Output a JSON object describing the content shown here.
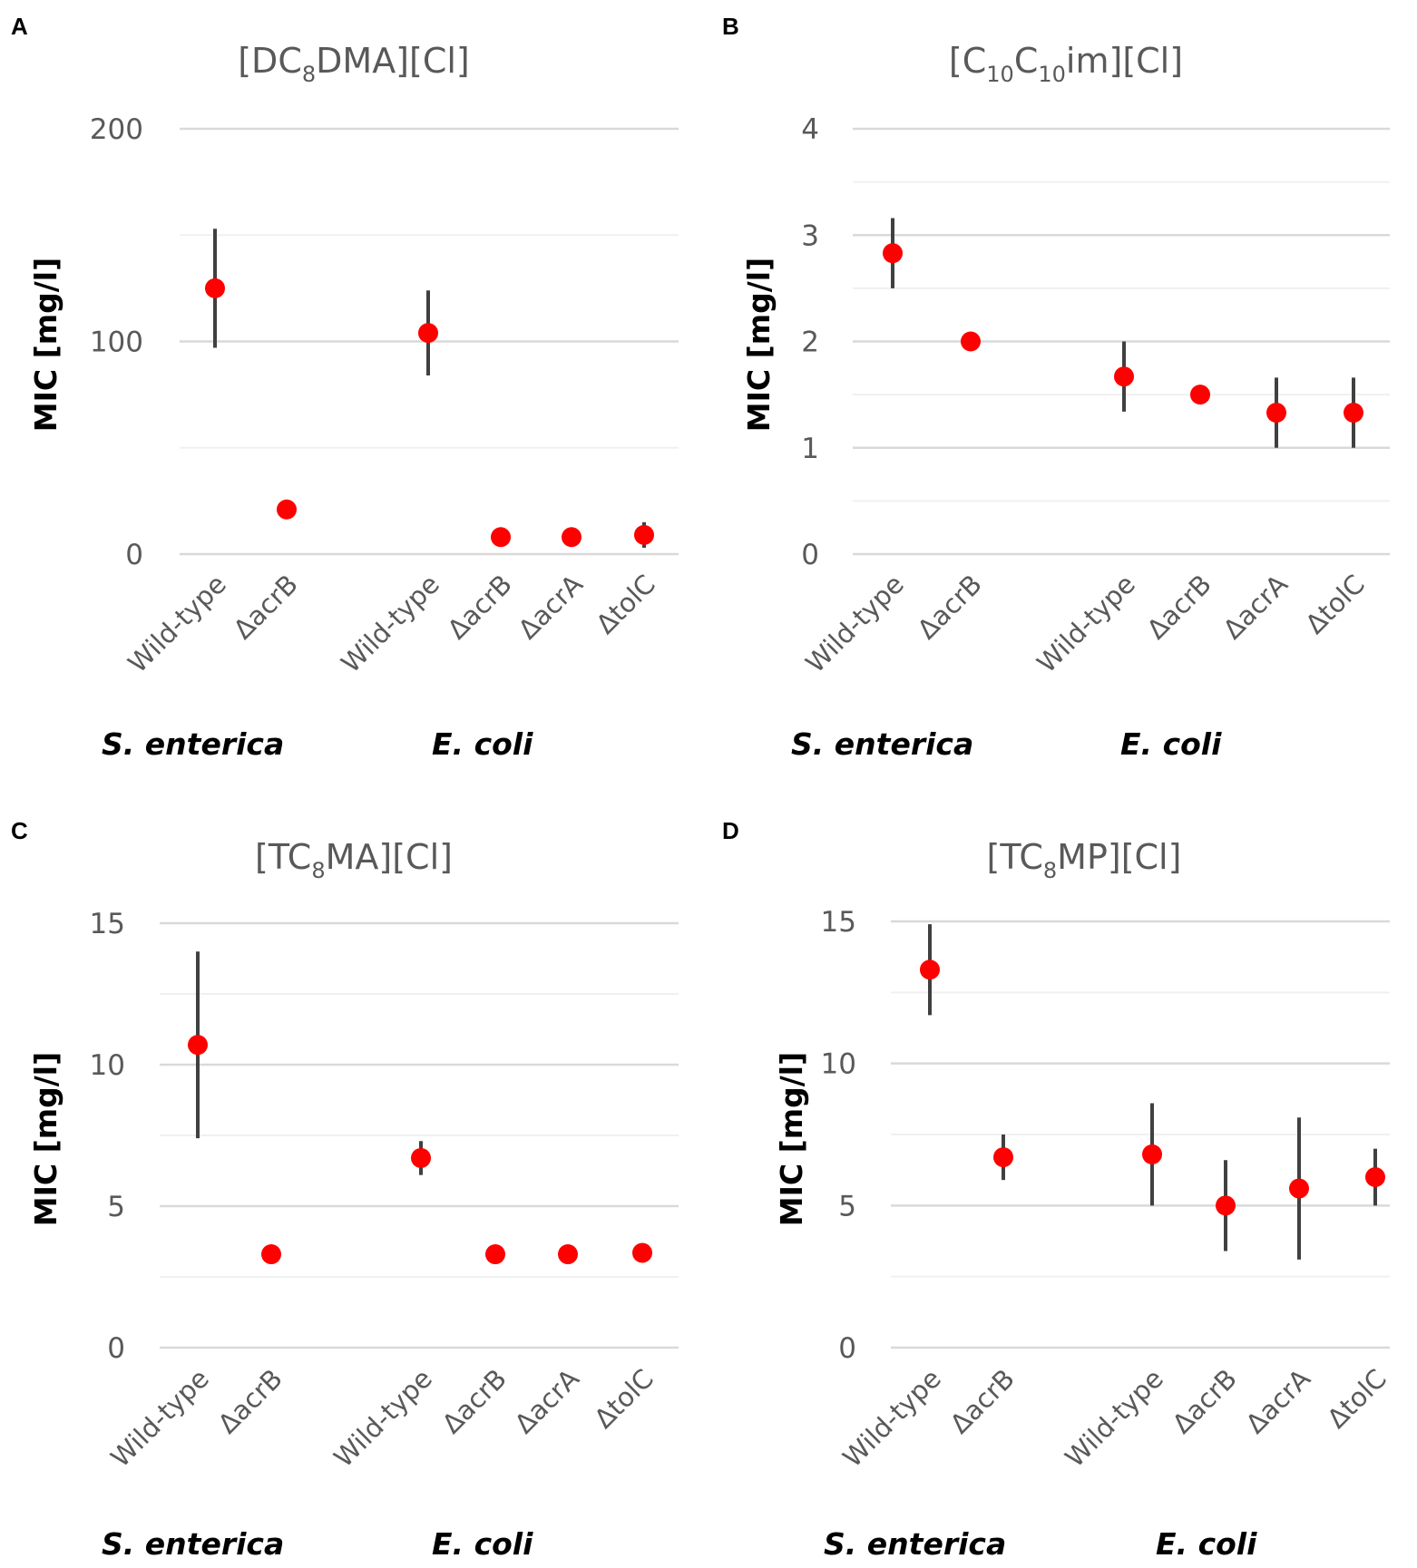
{
  "chart_data": [
    {
      "panel": "A",
      "type": "scatter",
      "title": "[DC8DMA][Cl]",
      "title_parts": {
        "pre": "[DC",
        "sub1": "8",
        "mid": "DMA][Cl]",
        "sub2": "",
        "post": ""
      },
      "ylabel": "MIC [mg/l]",
      "ylim": [
        0,
        200
      ],
      "yticks": [
        0,
        100,
        200
      ],
      "minor_gridlines": [
        50,
        150
      ],
      "groups": [
        {
          "name": "S. enterica",
          "categories": [
            "Wild-type",
            "ΔacrB"
          ],
          "values": [
            125,
            21
          ],
          "errors": [
            28,
            3
          ]
        },
        {
          "name": "E. coli",
          "categories": [
            "Wild-type",
            "ΔacrB",
            "ΔacrA",
            "ΔtolC"
          ],
          "values": [
            104,
            8,
            8,
            9
          ],
          "errors": [
            20,
            1,
            1,
            6
          ]
        }
      ]
    },
    {
      "panel": "B",
      "type": "scatter",
      "title": "[C10C10im][Cl]",
      "title_parts": {
        "pre": "[C",
        "sub1": "10",
        "mid": "C",
        "sub2": "10",
        "post": "im][Cl]"
      },
      "ylabel": "MIC [mg/l]",
      "ylim": [
        0,
        4
      ],
      "yticks": [
        0,
        1,
        2,
        3,
        4
      ],
      "minor_gridlines": [
        0.5,
        1.5,
        2.5,
        3.5
      ],
      "groups": [
        {
          "name": "S. enterica",
          "categories": [
            "Wild-type",
            "ΔacrB"
          ],
          "values": [
            2.83,
            2.0
          ],
          "errors": [
            0.33,
            0
          ]
        },
        {
          "name": "E. coli",
          "categories": [
            "Wild-type",
            "ΔacrB",
            "ΔacrA",
            "ΔtolC"
          ],
          "values": [
            1.67,
            1.5,
            1.33,
            1.33
          ],
          "errors": [
            0.33,
            0,
            0.33,
            0.33
          ]
        }
      ]
    },
    {
      "panel": "C",
      "type": "scatter",
      "title": "[TC8MA][Cl]",
      "title_parts": {
        "pre": "[TC",
        "sub1": "8",
        "mid": "MA][Cl]",
        "sub2": "",
        "post": ""
      },
      "ylabel": "MIC [mg/l]",
      "ylim": [
        0,
        15
      ],
      "yticks": [
        0,
        5,
        10,
        15
      ],
      "minor_gridlines": [
        2.5,
        7.5,
        12.5
      ],
      "groups": [
        {
          "name": "S. enterica",
          "categories": [
            "Wild-type",
            "ΔacrB"
          ],
          "values": [
            10.7,
            3.3
          ],
          "errors": [
            3.3,
            0.3
          ]
        },
        {
          "name": "E. coli",
          "categories": [
            "Wild-type",
            "ΔacrB",
            "ΔacrA",
            "ΔtolC"
          ],
          "values": [
            6.7,
            3.3,
            3.3,
            3.35
          ],
          "errors": [
            0.6,
            0.1,
            0.3,
            0.1
          ]
        }
      ]
    },
    {
      "panel": "D",
      "type": "scatter",
      "title": "[TC8MP][Cl]",
      "title_parts": {
        "pre": "[TC",
        "sub1": "8",
        "mid": "MP][Cl]",
        "sub2": "",
        "post": ""
      },
      "ylabel": "MIC [mg/l]",
      "ylim": [
        0,
        15
      ],
      "yticks": [
        0,
        5,
        10,
        15
      ],
      "minor_gridlines": [
        2.5,
        7.5,
        12.5
      ],
      "groups": [
        {
          "name": "S. enterica",
          "categories": [
            "Wild-type",
            "ΔacrB"
          ],
          "values": [
            13.3,
            6.7
          ],
          "errors": [
            1.6,
            0.8
          ]
        },
        {
          "name": "E. coli",
          "categories": [
            "Wild-type",
            "ΔacrB",
            "ΔacrA",
            "ΔtolC"
          ],
          "values": [
            6.8,
            5.0,
            5.6,
            6.0
          ],
          "errors": [
            1.8,
            1.6,
            2.5,
            1.0
          ]
        }
      ]
    }
  ]
}
